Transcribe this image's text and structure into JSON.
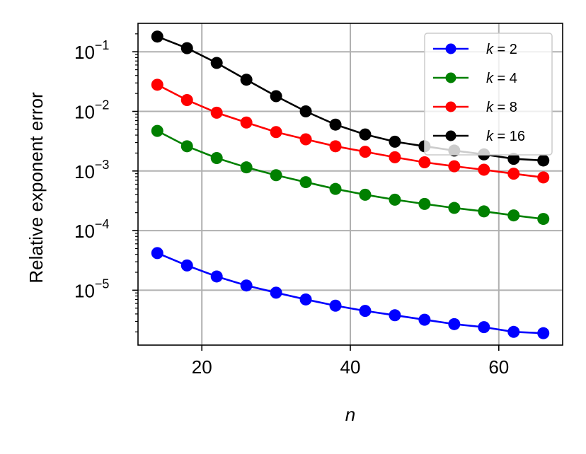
{
  "chart_data": {
    "type": "line",
    "xlabel": "n",
    "ylabel": "Relative exponent error",
    "yscale": "log",
    "xlim": [
      11.4,
      68.6
    ],
    "ylim": [
      1.2e-06,
      0.3
    ],
    "grid": true,
    "legend_position": "top-right",
    "x_ticks": [
      20,
      40,
      60
    ],
    "y_ticks": [
      {
        "value": 0.1,
        "base": "10",
        "exp": "−1"
      },
      {
        "value": 0.01,
        "base": "10",
        "exp": "−2"
      },
      {
        "value": 0.001,
        "base": "10",
        "exp": "−3"
      },
      {
        "value": 0.0001,
        "base": "10",
        "exp": "−4"
      },
      {
        "value": 1e-05,
        "base": "10",
        "exp": "−5"
      }
    ],
    "x": [
      14,
      18,
      22,
      26,
      30,
      34,
      38,
      42,
      46,
      50,
      54,
      58,
      62,
      66
    ],
    "series": [
      {
        "name": "k = 2",
        "legend_var": "k",
        "legend_val": "= 2",
        "color": "#0000ff",
        "values": [
          4.2e-05,
          2.6e-05,
          1.7e-05,
          1.2e-05,
          9.1e-06,
          7e-06,
          5.5e-06,
          4.5e-06,
          3.8e-06,
          3.2e-06,
          2.7e-06,
          2.4e-06,
          2e-06,
          1.9e-06
        ]
      },
      {
        "name": "k = 4",
        "legend_var": "k",
        "legend_val": "= 4",
        "color": "#008000",
        "values": [
          0.0047,
          0.0026,
          0.00165,
          0.00115,
          0.00085,
          0.00065,
          0.0005,
          0.0004,
          0.00033,
          0.00028,
          0.00024,
          0.00021,
          0.00018,
          0.000157
        ]
      },
      {
        "name": "k = 8",
        "legend_var": "k",
        "legend_val": "= 8",
        "color": "#ff0000",
        "values": [
          0.028,
          0.0155,
          0.0095,
          0.0065,
          0.0045,
          0.0034,
          0.0026,
          0.0021,
          0.0017,
          0.0014,
          0.0012,
          0.00105,
          0.0009,
          0.00078
        ]
      },
      {
        "name": "k = 16",
        "legend_var": "k",
        "legend_val": "= 16",
        "color": "#000000",
        "values": [
          0.18,
          0.115,
          0.065,
          0.034,
          0.018,
          0.01,
          0.006,
          0.0041,
          0.0031,
          0.0026,
          0.0022,
          0.0019,
          0.0016,
          0.0015
        ]
      }
    ]
  }
}
